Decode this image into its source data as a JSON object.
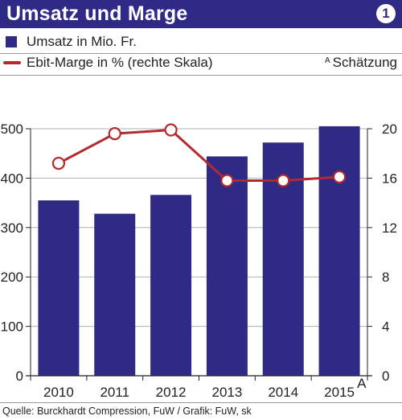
{
  "header": {
    "title": "Umsatz und Marge",
    "badge": "1"
  },
  "legend": {
    "bar_label": "Umsatz in Mio. Fr.",
    "line_label": "Ebit-Marge in % (rechte Skala)",
    "estimate_marker": "A",
    "estimate_note": "Schätzung"
  },
  "source": "Quelle: Burckhardt Compression, FuW / Grafik: FuW, sk",
  "colors": {
    "bar": "#2f2a86",
    "line": "#b32a2e",
    "grid": "#b0b0b0"
  },
  "chart_data": {
    "type": "bar",
    "categories": [
      "2010",
      "2011",
      "2012",
      "2013",
      "2014",
      "2015"
    ],
    "category_suffix": [
      "",
      "",
      "",
      "",
      "",
      "A"
    ],
    "series": [
      {
        "name": "Umsatz in Mio. Fr.",
        "type": "bar",
        "axis": "left",
        "values": [
          355,
          328,
          366,
          444,
          472,
          505
        ]
      },
      {
        "name": "Ebit-Marge in % (rechte Skala)",
        "type": "line",
        "axis": "right",
        "values": [
          17.2,
          19.6,
          19.9,
          15.8,
          15.8,
          16.1
        ]
      }
    ],
    "ylim": [
      0,
      500
    ],
    "yticks": [
      0,
      100,
      200,
      300,
      400,
      500
    ],
    "y2lim": [
      0,
      20
    ],
    "y2ticks": [
      0,
      4,
      8,
      12,
      16,
      20
    ],
    "grid": true
  }
}
